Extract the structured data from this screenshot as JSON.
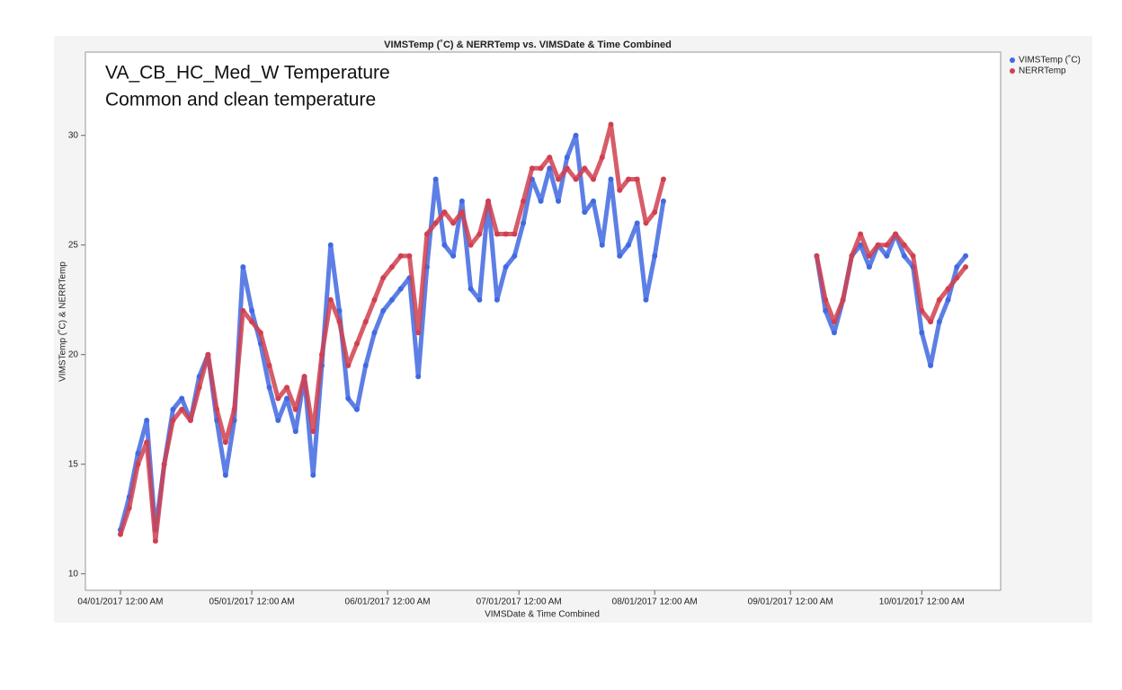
{
  "chart_data": {
    "type": "scatter",
    "title": "VIMSTemp (˚C) & NERRTemp vs. VIMSDate & Time Combined",
    "annotations": [
      "VA_CB_HC_Med_W Temperature",
      "Common and clean temperature"
    ],
    "x_label": "VIMSDate & Time Combined",
    "y_label": "VIMSTemp (˚C) & NERRTemp",
    "x": [
      "2017-04-01",
      "2017-04-03",
      "2017-04-05",
      "2017-04-07",
      "2017-04-09",
      "2017-04-11",
      "2017-04-13",
      "2017-04-15",
      "2017-04-17",
      "2017-04-19",
      "2017-04-21",
      "2017-04-23",
      "2017-04-25",
      "2017-04-27",
      "2017-04-29",
      "2017-05-01",
      "2017-05-03",
      "2017-05-05",
      "2017-05-07",
      "2017-05-09",
      "2017-05-11",
      "2017-05-13",
      "2017-05-15",
      "2017-05-17",
      "2017-05-19",
      "2017-05-21",
      "2017-05-23",
      "2017-05-25",
      "2017-05-27",
      "2017-05-29",
      "2017-05-31",
      "2017-06-02",
      "2017-06-04",
      "2017-06-06",
      "2017-06-08",
      "2017-06-10",
      "2017-06-12",
      "2017-06-14",
      "2017-06-16",
      "2017-06-18",
      "2017-06-20",
      "2017-06-22",
      "2017-06-24",
      "2017-06-26",
      "2017-06-28",
      "2017-06-30",
      "2017-07-02",
      "2017-07-04",
      "2017-07-06",
      "2017-07-08",
      "2017-07-10",
      "2017-07-12",
      "2017-07-14",
      "2017-07-16",
      "2017-07-18",
      "2017-07-20",
      "2017-07-22",
      "2017-07-24",
      "2017-07-26",
      "2017-07-28",
      "2017-07-30",
      "2017-08-01",
      "2017-08-03",
      "2017-08-17",
      "2017-09-07",
      "2017-09-09",
      "2017-09-11",
      "2017-09-13",
      "2017-09-15",
      "2017-09-17",
      "2017-09-19",
      "2017-09-21",
      "2017-09-23",
      "2017-09-25",
      "2017-09-27",
      "2017-09-29",
      "2017-10-01",
      "2017-10-03",
      "2017-10-05",
      "2017-10-07",
      "2017-10-09",
      "2017-10-11"
    ],
    "series": [
      {
        "name": "VIMSTemp (˚C)",
        "color": "#4169e1",
        "values": [
          12,
          13.5,
          15.5,
          17,
          12,
          15,
          17.5,
          18,
          17,
          19,
          20,
          17,
          14.5,
          17,
          24,
          22,
          20.5,
          18.5,
          17,
          18,
          16.5,
          19,
          14.5,
          19.5,
          25,
          22,
          18,
          17.5,
          19.5,
          21,
          22,
          22.5,
          23,
          23.5,
          19,
          24,
          28,
          25,
          24.5,
          27,
          23,
          22.5,
          27,
          22.5,
          24,
          24.5,
          26,
          28,
          27,
          28.5,
          27,
          29,
          30,
          26.5,
          27,
          25,
          28,
          24.5,
          25,
          26,
          22.5,
          24.5,
          27,
          null,
          24.5,
          22,
          21,
          22.5,
          24.5,
          25,
          24,
          25,
          24.5,
          25.5,
          24.5,
          24,
          21,
          19.5,
          21.5,
          22.5,
          24,
          24.5
        ]
      },
      {
        "name": "NERRTemp",
        "color": "#d0404f",
        "values": [
          11.8,
          13,
          15,
          16,
          11.5,
          15,
          17,
          17.5,
          17,
          18.5,
          20,
          17.5,
          16,
          17.5,
          22,
          21.5,
          21,
          19.5,
          18,
          18.5,
          17.5,
          19,
          16.5,
          20,
          22.5,
          21.5,
          19.5,
          20.5,
          21.5,
          22.5,
          23.5,
          24,
          24.5,
          24.5,
          21,
          25.5,
          26,
          26.5,
          26,
          26.5,
          25,
          25.5,
          27,
          25.5,
          25.5,
          25.5,
          27,
          28.5,
          28.5,
          29,
          28,
          28.5,
          28,
          28.5,
          28,
          29,
          30.5,
          27.5,
          28,
          28,
          26,
          26.5,
          28,
          null,
          24.5,
          22.5,
          21.5,
          22.5,
          24.5,
          25.5,
          24.5,
          25,
          25,
          25.5,
          25,
          24.5,
          22,
          21.5,
          22.5,
          23,
          23.5,
          24
        ]
      }
    ],
    "xlim": [
      "2017-03-24",
      "2017-10-19"
    ],
    "xticks": [
      {
        "value": "2017-04-01",
        "label": "04/01/2017 12:00 AM"
      },
      {
        "value": "2017-05-01",
        "label": "05/01/2017 12:00 AM"
      },
      {
        "value": "2017-06-01",
        "label": "06/01/2017 12:00 AM"
      },
      {
        "value": "2017-07-01",
        "label": "07/01/2017 12:00 AM"
      },
      {
        "value": "2017-08-01",
        "label": "08/01/2017 12:00 AM"
      },
      {
        "value": "2017-09-01",
        "label": "09/01/2017 12:00 AM"
      },
      {
        "value": "2017-10-01",
        "label": "10/01/2017 12:00 AM"
      }
    ],
    "ylim": [
      9.25,
      33.8
    ],
    "yticks": [
      10,
      15,
      20,
      25,
      30
    ],
    "legend": "top-right"
  }
}
